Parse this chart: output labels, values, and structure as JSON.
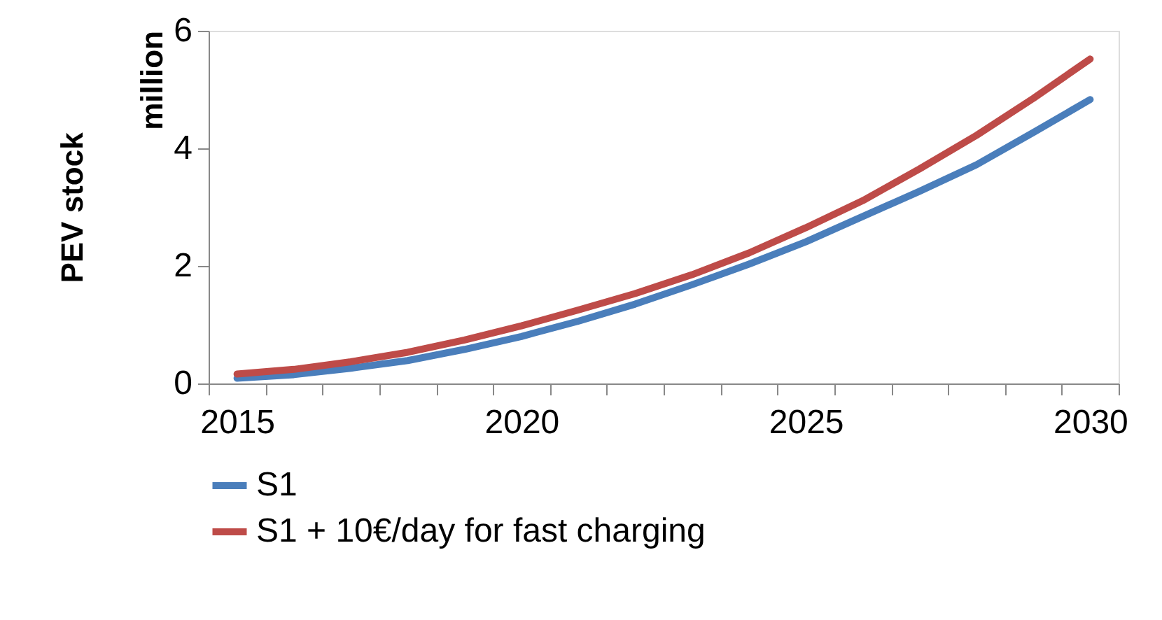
{
  "chart_data": {
    "type": "line",
    "ylabel": "PEV stock",
    "annotations": [
      "million"
    ],
    "categories": [
      "2015",
      null,
      null,
      null,
      null,
      "2020",
      null,
      null,
      null,
      null,
      "2025",
      null,
      null,
      null,
      null,
      "2030"
    ],
    "series": [
      {
        "name": "S1",
        "color": "#4a7ebb",
        "values": [
          0.09,
          0.15,
          0.26,
          0.39,
          0.58,
          0.8,
          1.06,
          1.35,
          1.68,
          2.03,
          2.41,
          2.84,
          3.27,
          3.72,
          4.27,
          4.83
        ]
      },
      {
        "name": "S1 + 10€/day for fast charging",
        "color": "#be4b48",
        "values": [
          0.16,
          0.24,
          0.37,
          0.53,
          0.74,
          0.98,
          1.25,
          1.53,
          1.85,
          2.22,
          2.65,
          3.11,
          3.65,
          4.22,
          4.85,
          5.52
        ]
      }
    ],
    "ylim": [
      0,
      6
    ],
    "yticks": [
      0,
      2,
      4,
      6
    ],
    "grid": false,
    "legend": "bottom",
    "line_style": "solid",
    "marker": "none"
  }
}
